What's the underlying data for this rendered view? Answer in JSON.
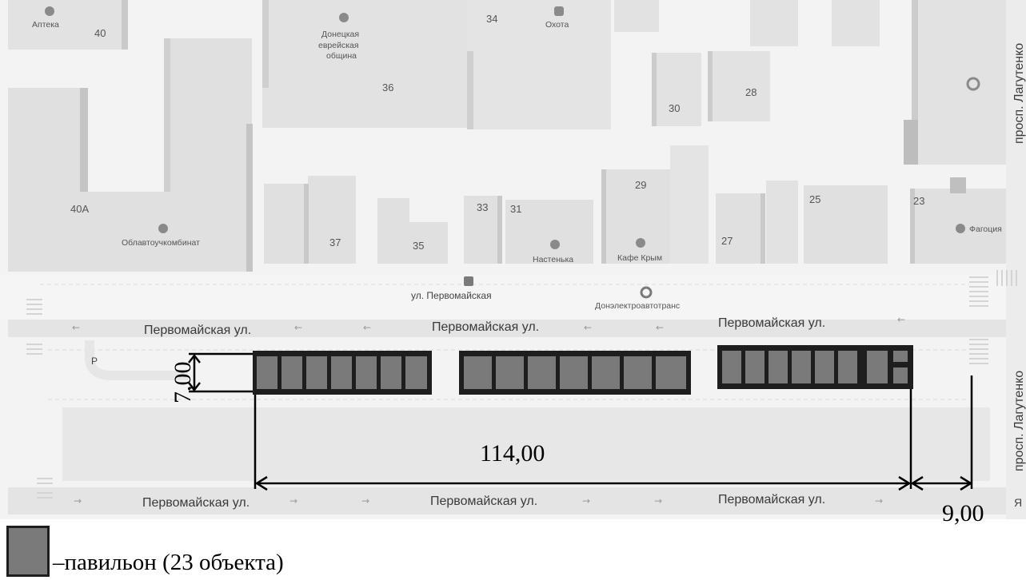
{
  "streets": {
    "main_top": [
      "Первомайская ул.",
      "Первомайская ул.",
      "Первомайская ул."
    ],
    "main_bottom": [
      "Первомайская ул.",
      "Первомайская ул.",
      "Первомайская ул."
    ],
    "service": "ул. Первомайская",
    "avenue_top": "просп. Лагутенко",
    "avenue_bottom": "просп. Лагутенко"
  },
  "buildings": {
    "b40": "40",
    "b36": "36",
    "b34": "34",
    "b30": "30",
    "b28": "28",
    "b40a": "40А",
    "b37": "37",
    "b35": "35",
    "b33": "33",
    "b31": "31",
    "b29": "29",
    "b27": "27",
    "b25": "25",
    "b23": "23"
  },
  "poi": {
    "apteka": "Аптека",
    "community": [
      "Донецкая",
      "еврейская",
      "община"
    ],
    "ohota": "Охота",
    "oblavto": "Облавтоучкомбинат",
    "nastenka": "Настенька",
    "kafe": "Кафе Крым",
    "donelectro": "Донэлектроавтотранс",
    "fagociya": "Фагоция",
    "parking": "P",
    "cut_edge": "Я"
  },
  "dimensions": {
    "height": "7,00",
    "length": "114,00",
    "offset": "9,00"
  },
  "legend": {
    "text": "–павильон (23 объекта)",
    "pavilion_count": 23
  },
  "colors": {
    "background": "#f2f2f2",
    "building": "#e0e0e0",
    "building_dark": "#c4c4c4",
    "road": "#e6e6e6",
    "pavilion_fill": "#7a7a7a",
    "pavilion_frame": "#1e1e1e"
  }
}
